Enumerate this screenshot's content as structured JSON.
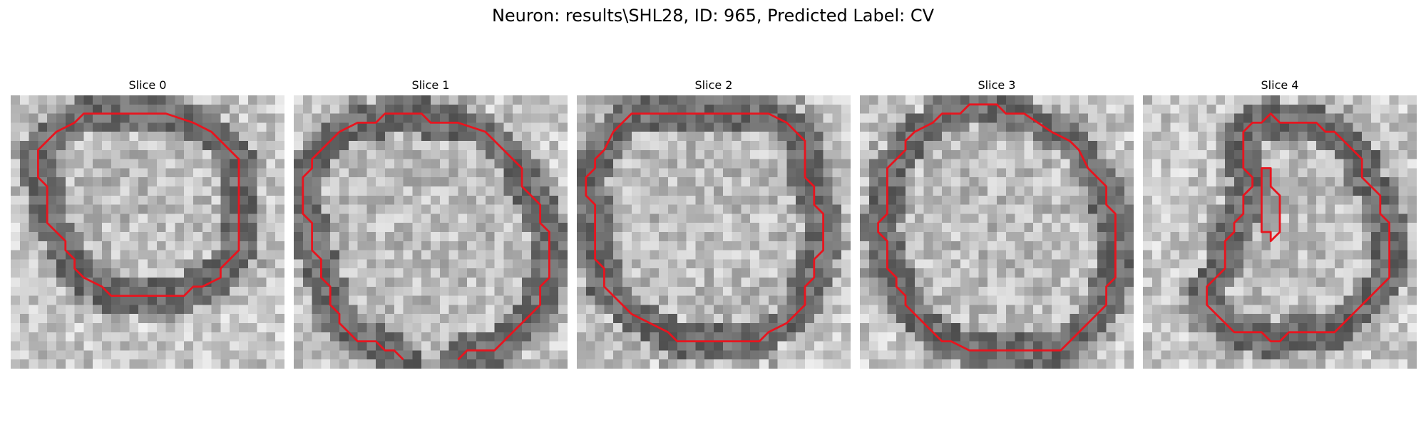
{
  "figure": {
    "title": "Neuron: results\\SHL28, ID: 965, Predicted Label: CV"
  },
  "grid": {
    "rows": 30,
    "cols": 30
  },
  "colors": {
    "contour": "#e8141e",
    "background": "#ffffff"
  },
  "slices": [
    {
      "title": "Slice 0",
      "contour": [
        [
          9,
          2
        ],
        [
          17,
          2
        ],
        [
          20,
          3
        ],
        [
          22,
          4
        ],
        [
          23,
          5
        ],
        [
          25,
          7
        ],
        [
          25,
          17
        ],
        [
          23,
          19
        ],
        [
          23,
          20
        ],
        [
          21,
          21
        ],
        [
          20,
          21
        ],
        [
          19,
          22
        ],
        [
          11,
          22
        ],
        [
          10,
          21
        ],
        [
          8,
          20
        ],
        [
          7,
          19
        ],
        [
          7,
          18
        ],
        [
          6,
          17
        ],
        [
          6,
          16
        ],
        [
          5,
          15
        ],
        [
          4,
          14
        ],
        [
          4,
          10
        ],
        [
          3,
          9
        ],
        [
          3,
          6
        ],
        [
          4,
          5
        ],
        [
          5,
          4
        ],
        [
          7,
          3
        ],
        [
          8,
          2
        ]
      ],
      "closed": true
    },
    {
      "title": "Slice 1",
      "contour": [
        [
          12,
          29
        ],
        [
          11,
          28
        ],
        [
          10,
          28
        ],
        [
          9,
          27
        ],
        [
          7,
          27
        ],
        [
          6,
          26
        ],
        [
          5,
          25
        ],
        [
          5,
          24
        ],
        [
          4,
          23
        ],
        [
          4,
          21
        ],
        [
          3,
          20
        ],
        [
          3,
          18
        ],
        [
          2,
          17
        ],
        [
          2,
          14
        ],
        [
          1,
          13
        ],
        [
          1,
          9
        ],
        [
          2,
          8
        ],
        [
          2,
          7
        ],
        [
          3,
          6
        ],
        [
          4,
          5
        ],
        [
          5,
          4
        ],
        [
          7,
          3
        ],
        [
          9,
          3
        ],
        [
          10,
          2
        ],
        [
          14,
          2
        ],
        [
          15,
          3
        ],
        [
          17,
          3
        ],
        [
          18,
          3
        ],
        [
          21,
          4
        ],
        [
          22,
          5
        ],
        [
          24,
          7
        ],
        [
          25,
          8
        ],
        [
          25,
          10
        ],
        [
          26,
          11
        ],
        [
          27,
          12
        ],
        [
          27,
          14
        ],
        [
          28,
          15
        ],
        [
          28,
          20
        ],
        [
          27,
          21
        ],
        [
          27,
          23
        ],
        [
          26,
          24
        ],
        [
          25,
          25
        ],
        [
          24,
          26
        ],
        [
          23,
          27
        ],
        [
          22,
          28
        ],
        [
          19,
          28
        ],
        [
          18,
          29
        ]
      ],
      "closed": false
    },
    {
      "title": "Slice 2",
      "contour": [
        [
          6,
          2
        ],
        [
          21,
          2
        ],
        [
          23,
          3
        ],
        [
          24,
          4
        ],
        [
          25,
          5
        ],
        [
          25,
          9
        ],
        [
          26,
          10
        ],
        [
          26,
          12
        ],
        [
          27,
          13
        ],
        [
          27,
          17
        ],
        [
          26,
          18
        ],
        [
          26,
          20
        ],
        [
          25,
          21
        ],
        [
          25,
          23
        ],
        [
          24,
          24
        ],
        [
          23,
          25
        ],
        [
          21,
          26
        ],
        [
          20,
          27
        ],
        [
          11,
          27
        ],
        [
          10,
          26
        ],
        [
          8,
          25
        ],
        [
          6,
          24
        ],
        [
          5,
          23
        ],
        [
          3,
          21
        ],
        [
          3,
          19
        ],
        [
          2,
          18
        ],
        [
          2,
          12
        ],
        [
          1,
          11
        ],
        [
          1,
          9
        ],
        [
          2,
          8
        ],
        [
          2,
          7
        ],
        [
          3,
          6
        ],
        [
          4,
          4
        ],
        [
          5,
          3
        ]
      ],
      "closed": true
    },
    {
      "title": "Slice 3",
      "contour": [
        [
          12,
          1
        ],
        [
          15,
          1
        ],
        [
          16,
          2
        ],
        [
          18,
          2
        ],
        [
          21,
          4
        ],
        [
          23,
          5
        ],
        [
          24,
          6
        ],
        [
          25,
          8
        ],
        [
          26,
          9
        ],
        [
          27,
          10
        ],
        [
          27,
          12
        ],
        [
          28,
          13
        ],
        [
          28,
          20
        ],
        [
          27,
          21
        ],
        [
          27,
          23
        ],
        [
          26,
          24
        ],
        [
          25,
          25
        ],
        [
          23,
          27
        ],
        [
          22,
          28
        ],
        [
          12,
          28
        ],
        [
          10,
          27
        ],
        [
          9,
          27
        ],
        [
          7,
          25
        ],
        [
          6,
          24
        ],
        [
          5,
          23
        ],
        [
          5,
          22
        ],
        [
          4,
          21
        ],
        [
          4,
          20
        ],
        [
          3,
          19
        ],
        [
          3,
          16
        ],
        [
          2,
          15
        ],
        [
          2,
          14
        ],
        [
          3,
          13
        ],
        [
          3,
          8
        ],
        [
          4,
          7
        ],
        [
          5,
          6
        ],
        [
          5,
          5
        ],
        [
          6,
          4
        ],
        [
          8,
          3
        ],
        [
          9,
          2
        ],
        [
          11,
          2
        ]
      ],
      "closed": true
    },
    {
      "title": "Slice 4",
      "contour": [
        [
          14,
          2
        ],
        [
          15,
          3
        ],
        [
          19,
          3
        ],
        [
          20,
          4
        ],
        [
          21,
          4
        ],
        [
          22,
          5
        ],
        [
          23,
          6
        ],
        [
          24,
          7
        ],
        [
          24,
          9
        ],
        [
          25,
          10
        ],
        [
          26,
          11
        ],
        [
          26,
          13
        ],
        [
          27,
          14
        ],
        [
          27,
          20
        ],
        [
          26,
          21
        ],
        [
          25,
          22
        ],
        [
          24,
          23
        ],
        [
          23,
          24
        ],
        [
          22,
          25
        ],
        [
          21,
          26
        ],
        [
          16,
          26
        ],
        [
          15,
          27
        ],
        [
          14,
          27
        ],
        [
          13,
          26
        ],
        [
          10,
          26
        ],
        [
          8,
          24
        ],
        [
          7,
          23
        ],
        [
          7,
          21
        ],
        [
          8,
          20
        ],
        [
          9,
          19
        ],
        [
          9,
          16
        ],
        [
          10,
          15
        ],
        [
          10,
          14
        ],
        [
          11,
          13
        ],
        [
          11,
          11
        ],
        [
          12,
          10
        ],
        [
          12,
          9
        ],
        [
          11,
          8
        ],
        [
          11,
          4
        ],
        [
          12,
          3
        ],
        [
          13,
          3
        ]
      ],
      "closed": true,
      "inner": [
        [
          13,
          8
        ],
        [
          14,
          8
        ],
        [
          14,
          10
        ],
        [
          15,
          11
        ],
        [
          15,
          15
        ],
        [
          14,
          16
        ],
        [
          14,
          15
        ],
        [
          13,
          15
        ],
        [
          13,
          10
        ],
        [
          13,
          9
        ]
      ]
    }
  ]
}
